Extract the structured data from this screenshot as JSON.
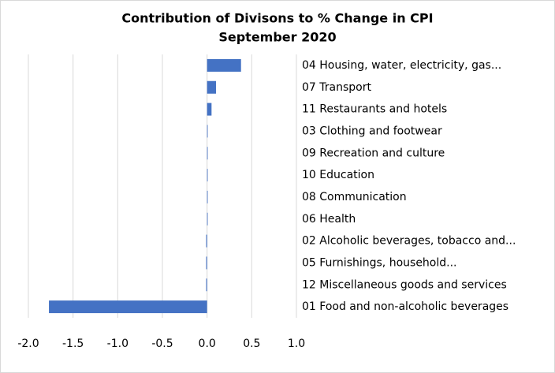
{
  "chart_data": {
    "type": "hbar",
    "title": "Contribution of Divisons to % Change in CPI",
    "subtitle": "September 2020",
    "categories": [
      "04 Housing, water, electricity, gas...",
      "07 Transport",
      "11 Restaurants and hotels",
      "03 Clothing and footwear",
      "09 Recreation and culture",
      "10 Education",
      "08 Communication",
      "06 Health",
      "02 Alcoholic beverages, tobacco and...",
      "05 Furnishings, household...",
      "12 Miscellaneous goods and services",
      "01 Food and non-alcoholic beverages"
    ],
    "values": [
      0.38,
      0.1,
      0.05,
      0,
      0,
      0,
      0,
      0,
      -0.01,
      -0.01,
      -0.01,
      -1.77
    ],
    "color": "#4472c4",
    "xlim": [
      -2,
      1
    ],
    "xticks": [
      {
        "value": -2,
        "label": "-2.0"
      },
      {
        "value": -1.5,
        "label": "-1.5"
      },
      {
        "value": -1,
        "label": "-1.0"
      },
      -0.5,
      {
        "value": 0,
        "label": "0.0"
      },
      0.5,
      {
        "value": 1,
        "label": "1.0"
      }
    ],
    "grid": true
  }
}
